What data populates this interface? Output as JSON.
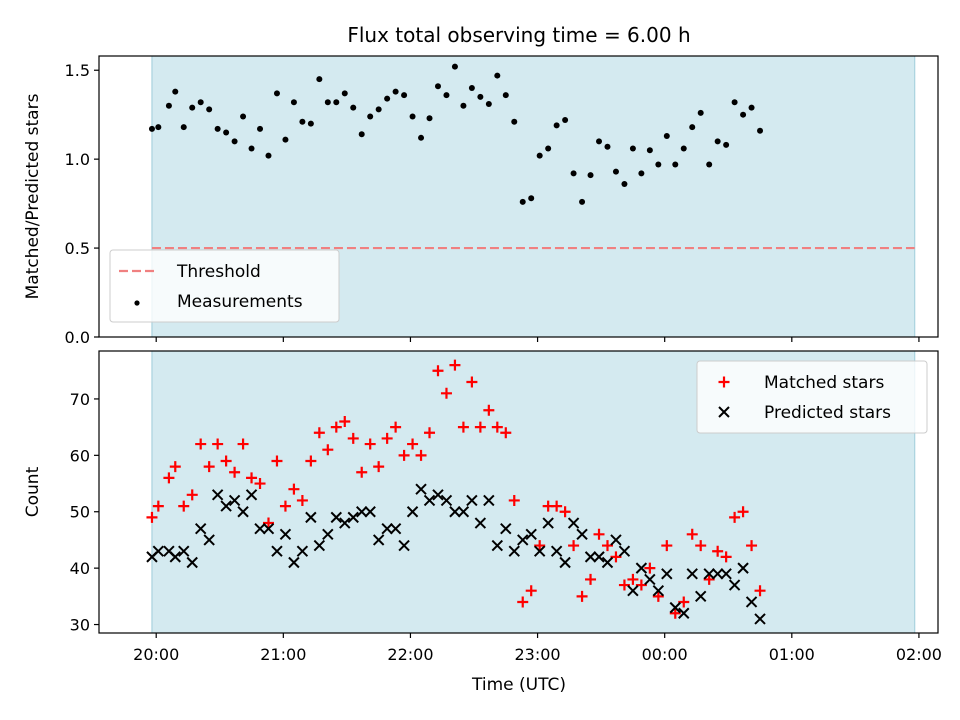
{
  "chart_data": {
    "title": "Flux total observing time = 6.00 h",
    "xlabel": "Time (UTC)",
    "x_ticks": [
      "20:00",
      "21:00",
      "22:00",
      "23:00",
      "00:00",
      "01:00",
      "02:00"
    ],
    "x_range": [
      "19:33",
      "02:09"
    ],
    "observing_window": [
      "19:58",
      "01:58"
    ],
    "colors": {
      "band": "#d4eaf0",
      "band_edge": "#a9d3df",
      "threshold": "#f08080",
      "matched": "#ff0000",
      "predicted": "#000000",
      "measurements": "#000000"
    },
    "panels": [
      {
        "type": "scatter",
        "ylabel": "Matched/Predicted stars",
        "ylim": [
          0,
          1.58
        ],
        "y_ticks": [
          0.0,
          0.5,
          1.0,
          1.5
        ],
        "y_tick_labels": [
          "0.0",
          "0.5",
          "1.0",
          "1.5"
        ],
        "legend_position": "lower-left",
        "threshold": {
          "name": "Threshold",
          "value": 0.5,
          "x_start": "19:58",
          "x_end": "01:58",
          "style": "dashed"
        },
        "series": [
          {
            "name": "Measurements",
            "marker": "dot",
            "points": [
              [
                "19:58",
                1.17
              ],
              [
                "20:01",
                1.18
              ],
              [
                "20:06",
                1.3
              ],
              [
                "20:09",
                1.38
              ],
              [
                "20:13",
                1.18
              ],
              [
                "20:17",
                1.29
              ],
              [
                "20:21",
                1.32
              ],
              [
                "20:25",
                1.28
              ],
              [
                "20:29",
                1.17
              ],
              [
                "20:33",
                1.15
              ],
              [
                "20:37",
                1.1
              ],
              [
                "20:41",
                1.24
              ],
              [
                "20:45",
                1.06
              ],
              [
                "20:49",
                1.17
              ],
              [
                "20:53",
                1.02
              ],
              [
                "20:57",
                1.37
              ],
              [
                "21:01",
                1.11
              ],
              [
                "21:05",
                1.32
              ],
              [
                "21:09",
                1.21
              ],
              [
                "21:13",
                1.2
              ],
              [
                "21:17",
                1.45
              ],
              [
                "21:21",
                1.32
              ],
              [
                "21:25",
                1.32
              ],
              [
                "21:29",
                1.37
              ],
              [
                "21:33",
                1.29
              ],
              [
                "21:37",
                1.14
              ],
              [
                "21:41",
                1.24
              ],
              [
                "21:45",
                1.28
              ],
              [
                "21:49",
                1.34
              ],
              [
                "21:53",
                1.38
              ],
              [
                "21:57",
                1.36
              ],
              [
                "22:01",
                1.24
              ],
              [
                "22:05",
                1.12
              ],
              [
                "22:09",
                1.23
              ],
              [
                "22:13",
                1.41
              ],
              [
                "22:17",
                1.36
              ],
              [
                "22:21",
                1.52
              ],
              [
                "22:25",
                1.3
              ],
              [
                "22:29",
                1.4
              ],
              [
                "22:33",
                1.35
              ],
              [
                "22:37",
                1.31
              ],
              [
                "22:41",
                1.47
              ],
              [
                "22:45",
                1.36
              ],
              [
                "22:49",
                1.21
              ],
              [
                "22:53",
                0.76
              ],
              [
                "22:57",
                0.78
              ],
              [
                "23:01",
                1.02
              ],
              [
                "23:05",
                1.06
              ],
              [
                "23:09",
                1.19
              ],
              [
                "23:13",
                1.22
              ],
              [
                "23:17",
                0.92
              ],
              [
                "23:21",
                0.76
              ],
              [
                "23:25",
                0.91
              ],
              [
                "23:29",
                1.1
              ],
              [
                "23:33",
                1.07
              ],
              [
                "23:37",
                0.93
              ],
              [
                "23:41",
                0.86
              ],
              [
                "23:45",
                1.06
              ],
              [
                "23:49",
                0.92
              ],
              [
                "23:53",
                1.05
              ],
              [
                "23:57",
                0.97
              ],
              [
                "00:01",
                1.13
              ],
              [
                "00:05",
                0.97
              ],
              [
                "00:09",
                1.06
              ],
              [
                "00:13",
                1.18
              ],
              [
                "00:17",
                1.26
              ],
              [
                "00:21",
                0.97
              ],
              [
                "00:25",
                1.1
              ],
              [
                "00:29",
                1.08
              ],
              [
                "00:33",
                1.32
              ],
              [
                "00:37",
                1.25
              ],
              [
                "00:41",
                1.29
              ],
              [
                "00:45",
                1.16
              ]
            ]
          }
        ]
      },
      {
        "type": "scatter",
        "ylabel": "Count",
        "ylim": [
          28.5,
          78.5
        ],
        "y_ticks": [
          30,
          40,
          50,
          60,
          70
        ],
        "y_tick_labels": [
          "30",
          "40",
          "50",
          "60",
          "70"
        ],
        "legend_position": "upper-right",
        "series": [
          {
            "name": "Matched stars",
            "marker": "plus",
            "points": [
              [
                "19:58",
                49
              ],
              [
                "20:01",
                51
              ],
              [
                "20:06",
                56
              ],
              [
                "20:09",
                58
              ],
              [
                "20:13",
                51
              ],
              [
                "20:17",
                53
              ],
              [
                "20:21",
                62
              ],
              [
                "20:25",
                58
              ],
              [
                "20:29",
                62
              ],
              [
                "20:33",
                59
              ],
              [
                "20:37",
                57
              ],
              [
                "20:41",
                62
              ],
              [
                "20:45",
                56
              ],
              [
                "20:49",
                55
              ],
              [
                "20:53",
                48
              ],
              [
                "20:57",
                59
              ],
              [
                "21:01",
                51
              ],
              [
                "21:05",
                54
              ],
              [
                "21:09",
                52
              ],
              [
                "21:13",
                59
              ],
              [
                "21:17",
                64
              ],
              [
                "21:21",
                61
              ],
              [
                "21:25",
                65
              ],
              [
                "21:29",
                66
              ],
              [
                "21:33",
                63
              ],
              [
                "21:37",
                57
              ],
              [
                "21:41",
                62
              ],
              [
                "21:45",
                58
              ],
              [
                "21:49",
                63
              ],
              [
                "21:53",
                65
              ],
              [
                "21:57",
                60
              ],
              [
                "22:01",
                62
              ],
              [
                "22:05",
                60
              ],
              [
                "22:09",
                64
              ],
              [
                "22:13",
                75
              ],
              [
                "22:17",
                71
              ],
              [
                "22:21",
                76
              ],
              [
                "22:25",
                65
              ],
              [
                "22:29",
                73
              ],
              [
                "22:33",
                65
              ],
              [
                "22:37",
                68
              ],
              [
                "22:41",
                65
              ],
              [
                "22:45",
                64
              ],
              [
                "22:49",
                52
              ],
              [
                "22:53",
                34
              ],
              [
                "22:57",
                36
              ],
              [
                "23:01",
                44
              ],
              [
                "23:05",
                51
              ],
              [
                "23:09",
                51
              ],
              [
                "23:13",
                50
              ],
              [
                "23:17",
                44
              ],
              [
                "23:21",
                35
              ],
              [
                "23:25",
                38
              ],
              [
                "23:29",
                46
              ],
              [
                "23:33",
                44
              ],
              [
                "23:37",
                42
              ],
              [
                "23:41",
                37
              ],
              [
                "23:45",
                38
              ],
              [
                "23:49",
                37
              ],
              [
                "23:53",
                40
              ],
              [
                "23:57",
                35
              ],
              [
                "00:01",
                44
              ],
              [
                "00:05",
                32
              ],
              [
                "00:09",
                34
              ],
              [
                "00:13",
                46
              ],
              [
                "00:17",
                44
              ],
              [
                "00:21",
                38
              ],
              [
                "00:25",
                43
              ],
              [
                "00:29",
                42
              ],
              [
                "00:33",
                49
              ],
              [
                "00:37",
                50
              ],
              [
                "00:41",
                44
              ],
              [
                "00:45",
                36
              ]
            ]
          },
          {
            "name": "Predicted stars",
            "marker": "x",
            "points": [
              [
                "19:58",
                42
              ],
              [
                "20:01",
                43
              ],
              [
                "20:06",
                43
              ],
              [
                "20:09",
                42
              ],
              [
                "20:13",
                43
              ],
              [
                "20:17",
                41
              ],
              [
                "20:21",
                47
              ],
              [
                "20:25",
                45
              ],
              [
                "20:29",
                53
              ],
              [
                "20:33",
                51
              ],
              [
                "20:37",
                52
              ],
              [
                "20:41",
                50
              ],
              [
                "20:45",
                53
              ],
              [
                "20:49",
                47
              ],
              [
                "20:53",
                47
              ],
              [
                "20:57",
                43
              ],
              [
                "21:01",
                46
              ],
              [
                "21:05",
                41
              ],
              [
                "21:09",
                43
              ],
              [
                "21:13",
                49
              ],
              [
                "21:17",
                44
              ],
              [
                "21:21",
                46
              ],
              [
                "21:25",
                49
              ],
              [
                "21:29",
                48
              ],
              [
                "21:33",
                49
              ],
              [
                "21:37",
                50
              ],
              [
                "21:41",
                50
              ],
              [
                "21:45",
                45
              ],
              [
                "21:49",
                47
              ],
              [
                "21:53",
                47
              ],
              [
                "21:57",
                44
              ],
              [
                "22:01",
                50
              ],
              [
                "22:05",
                54
              ],
              [
                "22:09",
                52
              ],
              [
                "22:13",
                53
              ],
              [
                "22:17",
                52
              ],
              [
                "22:21",
                50
              ],
              [
                "22:25",
                50
              ],
              [
                "22:29",
                52
              ],
              [
                "22:33",
                48
              ],
              [
                "22:37",
                52
              ],
              [
                "22:41",
                44
              ],
              [
                "22:45",
                47
              ],
              [
                "22:49",
                43
              ],
              [
                "22:53",
                45
              ],
              [
                "22:57",
                46
              ],
              [
                "23:01",
                43
              ],
              [
                "23:05",
                48
              ],
              [
                "23:09",
                43
              ],
              [
                "23:13",
                41
              ],
              [
                "23:17",
                48
              ],
              [
                "23:21",
                46
              ],
              [
                "23:25",
                42
              ],
              [
                "23:29",
                42
              ],
              [
                "23:33",
                41
              ],
              [
                "23:37",
                45
              ],
              [
                "23:41",
                43
              ],
              [
                "23:45",
                36
              ],
              [
                "23:49",
                40
              ],
              [
                "23:53",
                38
              ],
              [
                "23:57",
                36
              ],
              [
                "00:01",
                39
              ],
              [
                "00:05",
                33
              ],
              [
                "00:09",
                32
              ],
              [
                "00:13",
                39
              ],
              [
                "00:17",
                35
              ],
              [
                "00:21",
                39
              ],
              [
                "00:25",
                39
              ],
              [
                "00:29",
                39
              ],
              [
                "00:33",
                37
              ],
              [
                "00:37",
                40
              ],
              [
                "00:41",
                34
              ],
              [
                "00:45",
                31
              ]
            ]
          }
        ]
      }
    ]
  }
}
